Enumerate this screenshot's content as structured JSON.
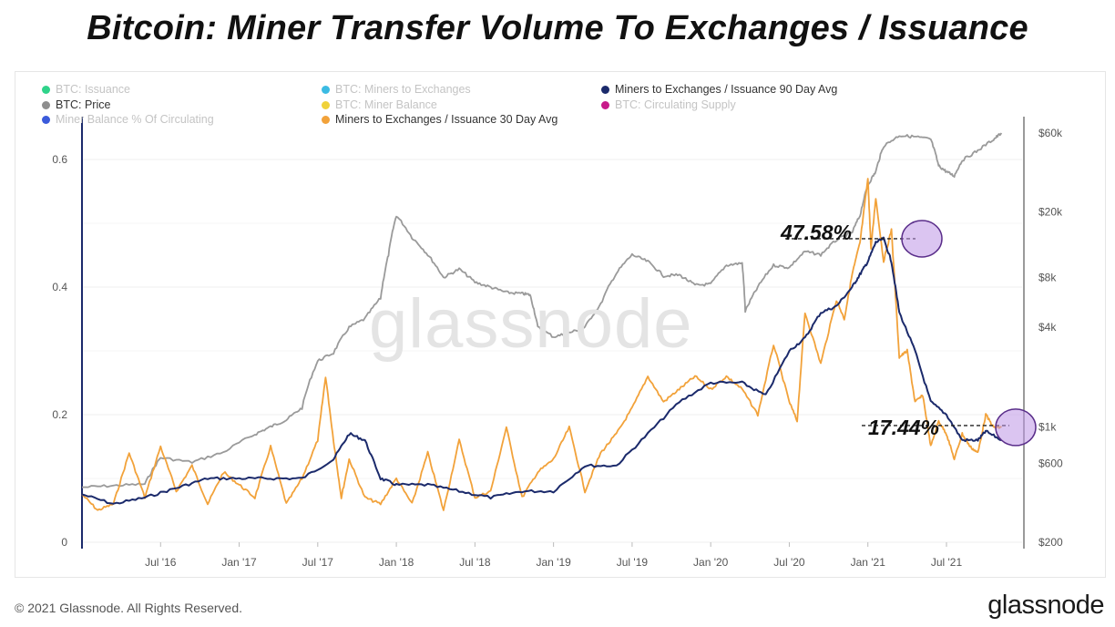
{
  "title": "Bitcoin: Miner Transfer Volume To Exchanges / Issuance",
  "footer": {
    "copyright": "© 2021 Glassnode. All Rights Reserved.",
    "brand": "glassnode"
  },
  "watermark": "glassnode",
  "legend": [
    {
      "label": "BTC: Issuance",
      "color": "#2fd38a",
      "active": false
    },
    {
      "label": "BTC: Miners to Exchanges",
      "color": "#3bbbe3",
      "active": false
    },
    {
      "label": "Miners to Exchanges / Issuance 90 Day Avg",
      "color": "#1b2a6b",
      "active": true
    },
    {
      "label": "BTC: Price",
      "color": "#8e8e8e",
      "active": true
    },
    {
      "label": "BTC: Miner Balance",
      "color": "#f0d23a",
      "active": false
    },
    {
      "label": "BTC: Circulating Supply",
      "color": "#c81a8a",
      "active": false
    },
    {
      "label": "Miner Balance % Of Circulating",
      "color": "#3b5bdb",
      "active": false
    },
    {
      "label": "Miners to Exchanges / Issuance 30 Day Avg",
      "color": "#f2a23a",
      "active": true
    }
  ],
  "annotations": {
    "peak_label": "47.58%",
    "recent_label": "17.44%"
  },
  "chart_data": {
    "type": "line",
    "x_ticks": [
      "Jul '16",
      "Jan '17",
      "Jul '17",
      "Jan '18",
      "Jul '18",
      "Jan '19",
      "Jul '19",
      "Jan '20",
      "Jul '20",
      "Jan '21",
      "Jul '21"
    ],
    "y_left_ticks": [
      "0",
      "0.2",
      "0.4",
      "0.6"
    ],
    "y_left_range": [
      0,
      0.72
    ],
    "y_right_ticks": [
      "$200",
      "$600",
      "$1k",
      "$4k",
      "$8k",
      "$20k",
      "$60k"
    ],
    "y_right_scale": "log",
    "grid": true,
    "colors": {
      "avg90": "#1b2a6b",
      "avg30": "#f2a23a",
      "price": "#9a9a9a"
    },
    "series": [
      {
        "name": "Miners to Exchanges / Issuance 90 Day Avg",
        "axis": "left",
        "x": [
          2016.0,
          2016.2,
          2016.4,
          2016.6,
          2016.8,
          2017.0,
          2017.2,
          2017.4,
          2017.6,
          2017.7,
          2017.8,
          2017.9,
          2018.0,
          2018.2,
          2018.4,
          2018.6,
          2018.8,
          2019.0,
          2019.2,
          2019.4,
          2019.6,
          2019.8,
          2020.0,
          2020.2,
          2020.35,
          2020.5,
          2020.6,
          2020.7,
          2020.8,
          2020.9,
          2020.95,
          2021.0,
          2021.05,
          2021.1,
          2021.15,
          2021.2,
          2021.3,
          2021.4,
          2021.5,
          2021.6,
          2021.7,
          2021.75,
          2021.85
        ],
        "values": [
          0.075,
          0.06,
          0.07,
          0.085,
          0.1,
          0.1,
          0.1,
          0.1,
          0.13,
          0.17,
          0.16,
          0.1,
          0.09,
          0.09,
          0.08,
          0.07,
          0.08,
          0.08,
          0.12,
          0.12,
          0.17,
          0.22,
          0.25,
          0.25,
          0.23,
          0.3,
          0.32,
          0.36,
          0.37,
          0.4,
          0.42,
          0.44,
          0.47,
          0.476,
          0.44,
          0.36,
          0.3,
          0.22,
          0.2,
          0.16,
          0.16,
          0.174,
          0.16
        ]
      },
      {
        "name": "Miners to Exchanges / Issuance 30 Day Avg",
        "axis": "left",
        "x": [
          2016.0,
          2016.1,
          2016.2,
          2016.3,
          2016.4,
          2016.5,
          2016.6,
          2016.7,
          2016.8,
          2016.9,
          2017.0,
          2017.1,
          2017.2,
          2017.3,
          2017.4,
          2017.5,
          2017.55,
          2017.6,
          2017.65,
          2017.7,
          2017.8,
          2017.9,
          2018.0,
          2018.1,
          2018.2,
          2018.3,
          2018.4,
          2018.5,
          2018.6,
          2018.7,
          2018.8,
          2018.9,
          2019.0,
          2019.1,
          2019.2,
          2019.3,
          2019.4,
          2019.5,
          2019.6,
          2019.7,
          2019.8,
          2019.9,
          2020.0,
          2020.1,
          2020.2,
          2020.3,
          2020.4,
          2020.5,
          2020.55,
          2020.6,
          2020.7,
          2020.8,
          2020.85,
          2020.9,
          2020.95,
          2021.0,
          2021.02,
          2021.05,
          2021.1,
          2021.15,
          2021.2,
          2021.25,
          2021.3,
          2021.35,
          2021.4,
          2021.45,
          2021.5,
          2021.55,
          2021.6,
          2021.65,
          2021.7,
          2021.75,
          2021.8,
          2021.85
        ],
        "values": [
          0.075,
          0.05,
          0.06,
          0.14,
          0.07,
          0.15,
          0.08,
          0.12,
          0.06,
          0.11,
          0.09,
          0.07,
          0.15,
          0.06,
          0.1,
          0.16,
          0.26,
          0.16,
          0.07,
          0.13,
          0.07,
          0.06,
          0.1,
          0.06,
          0.14,
          0.05,
          0.16,
          0.07,
          0.08,
          0.18,
          0.07,
          0.11,
          0.13,
          0.18,
          0.08,
          0.14,
          0.17,
          0.21,
          0.26,
          0.22,
          0.24,
          0.26,
          0.24,
          0.26,
          0.24,
          0.2,
          0.31,
          0.22,
          0.19,
          0.36,
          0.28,
          0.38,
          0.35,
          0.42,
          0.47,
          0.57,
          0.46,
          0.54,
          0.44,
          0.49,
          0.29,
          0.3,
          0.22,
          0.23,
          0.15,
          0.19,
          0.17,
          0.13,
          0.17,
          0.15,
          0.14,
          0.2,
          0.18,
          0.18
        ]
      },
      {
        "name": "BTC: Price",
        "axis": "right",
        "x": [
          2016.0,
          2016.2,
          2016.4,
          2016.5,
          2016.7,
          2016.9,
          2017.1,
          2017.2,
          2017.3,
          2017.4,
          2017.5,
          2017.6,
          2017.7,
          2017.8,
          2017.9,
          2017.95,
          2018.0,
          2018.1,
          2018.2,
          2018.3,
          2018.4,
          2018.5,
          2018.6,
          2018.7,
          2018.8,
          2018.85,
          2018.9,
          2019.0,
          2019.1,
          2019.2,
          2019.3,
          2019.4,
          2019.5,
          2019.6,
          2019.7,
          2019.8,
          2019.9,
          2020.0,
          2020.1,
          2020.2,
          2020.22,
          2020.3,
          2020.4,
          2020.5,
          2020.6,
          2020.7,
          2020.8,
          2020.9,
          2020.95,
          2021.0,
          2021.05,
          2021.1,
          2021.2,
          2021.3,
          2021.4,
          2021.45,
          2021.5,
          2021.55,
          2021.6,
          2021.7,
          2021.8,
          2021.85
        ],
        "values": [
          430,
          440,
          450,
          650,
          610,
          700,
          900,
          1000,
          1100,
          1300,
          2500,
          2800,
          4000,
          4500,
          6000,
          11000,
          19000,
          14000,
          11000,
          8000,
          9000,
          7500,
          7000,
          6500,
          6400,
          6300,
          4000,
          3500,
          3700,
          4000,
          5500,
          8500,
          11000,
          10000,
          8200,
          8300,
          7200,
          7300,
          9500,
          9800,
          5000,
          7000,
          9500,
          9200,
          11500,
          11000,
          13500,
          15000,
          19000,
          29000,
          35000,
          50000,
          58000,
          57000,
          55000,
          38000,
          35000,
          33000,
          41000,
          47000,
          55000,
          60000
        ]
      }
    ]
  }
}
